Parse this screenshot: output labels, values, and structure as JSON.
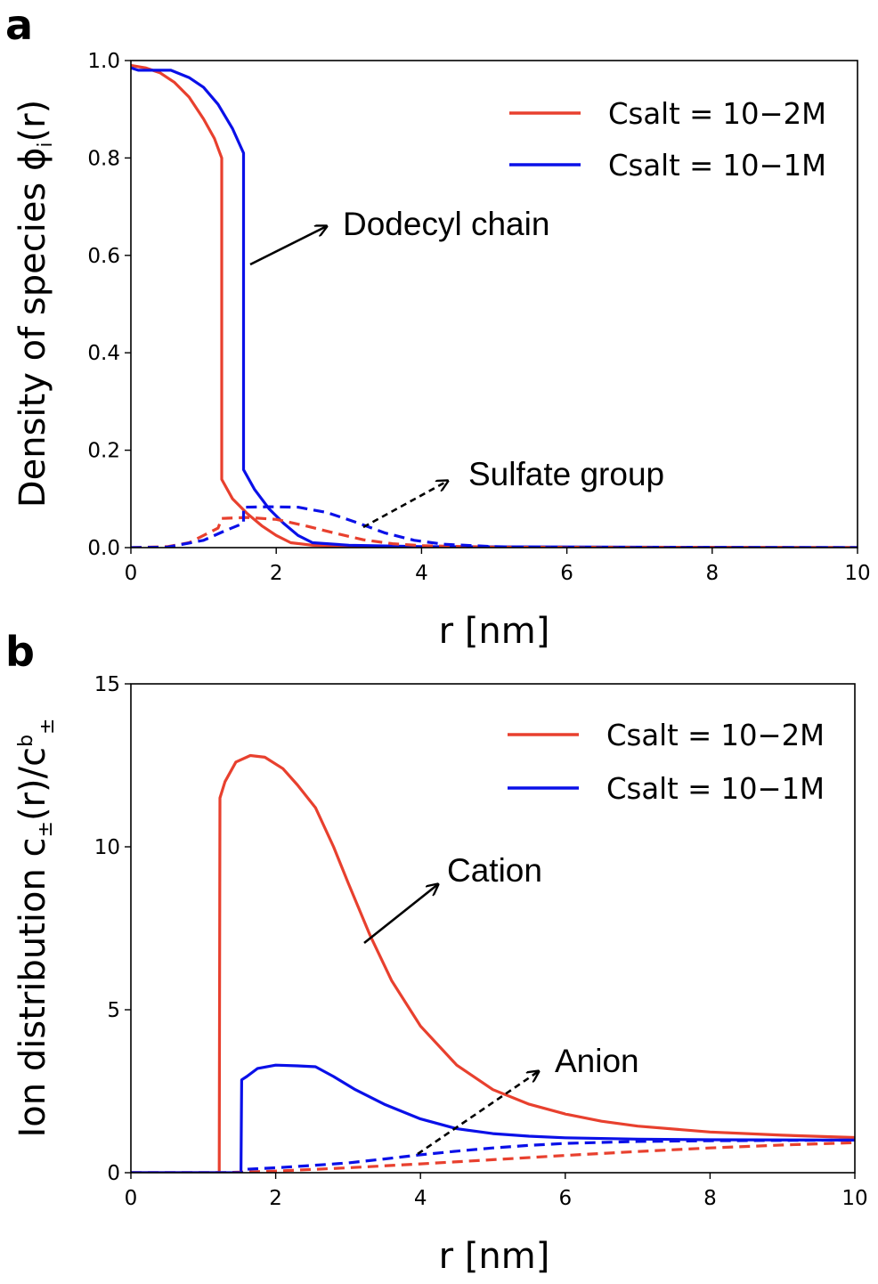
{
  "chart_data": [
    {
      "id": "a",
      "type": "line",
      "panel_label": "a",
      "xlabel": "r [nm]",
      "ylabel": "Density of species ϕi(r)",
      "ylabel_main": "Density of species ϕ",
      "ylabel_sub": "i",
      "ylabel_tail": "(r)",
      "xlim": [
        0,
        10
      ],
      "ylim": [
        0,
        1.0
      ],
      "xticks": [
        0,
        2,
        4,
        6,
        8,
        10
      ],
      "xtick_labels": [
        "0",
        "2",
        "4",
        "6",
        "8",
        "10"
      ],
      "yticks": [
        0,
        0.2,
        0.4,
        0.6,
        0.8,
        1.0
      ],
      "ytick_labels": [
        "0.0",
        "0.2",
        "0.4",
        "0.6",
        "0.8",
        "1.0"
      ],
      "legend": [
        {
          "text": "Csalt = 10−2M",
          "color": "#e8402e"
        },
        {
          "text": "Csalt = 10−1M",
          "color": "#0a10e8"
        }
      ],
      "annotations": [
        {
          "text": "Dodecyl chain",
          "style": "solid"
        },
        {
          "text": "Sulfate group",
          "style": "dashed"
        }
      ],
      "series": [
        {
          "name": "Dodecyl chain, Csalt = 10−2M",
          "color": "#e8402e",
          "dash": false,
          "points": [
            [
              0,
              0.99
            ],
            [
              0.2,
              0.985
            ],
            [
              0.4,
              0.975
            ],
            [
              0.6,
              0.955
            ],
            [
              0.8,
              0.925
            ],
            [
              1.0,
              0.88
            ],
            [
              1.15,
              0.84
            ],
            [
              1.25,
              0.8
            ],
            [
              1.25,
              0.14
            ],
            [
              1.4,
              0.1
            ],
            [
              1.6,
              0.07
            ],
            [
              1.8,
              0.045
            ],
            [
              2.0,
              0.025
            ],
            [
              2.2,
              0.01
            ],
            [
              2.5,
              0.005
            ],
            [
              3,
              0.002
            ],
            [
              4,
              0.001
            ],
            [
              10,
              0.0
            ]
          ]
        },
        {
          "name": "Dodecyl chain, Csalt = 10−1M",
          "color": "#0a10e8",
          "dash": false,
          "points": [
            [
              0,
              0.985
            ],
            [
              0.1,
              0.98
            ],
            [
              0.3,
              0.98
            ],
            [
              0.55,
              0.98
            ],
            [
              0.8,
              0.965
            ],
            [
              1.0,
              0.945
            ],
            [
              1.2,
              0.91
            ],
            [
              1.4,
              0.86
            ],
            [
              1.55,
              0.81
            ],
            [
              1.55,
              0.16
            ],
            [
              1.7,
              0.12
            ],
            [
              1.9,
              0.08
            ],
            [
              2.1,
              0.05
            ],
            [
              2.3,
              0.025
            ],
            [
              2.5,
              0.01
            ],
            [
              3,
              0.005
            ],
            [
              4,
              0.002
            ],
            [
              10,
              0.0
            ]
          ]
        },
        {
          "name": "Sulfate group, Csalt = 10−2M",
          "color": "#e8402e",
          "dash": true,
          "points": [
            [
              0,
              0.0
            ],
            [
              0.5,
              0.002
            ],
            [
              0.8,
              0.01
            ],
            [
              1.0,
              0.025
            ],
            [
              1.2,
              0.04
            ],
            [
              1.25,
              0.06
            ],
            [
              1.6,
              0.062
            ],
            [
              2.0,
              0.058
            ],
            [
              2.4,
              0.045
            ],
            [
              2.8,
              0.03
            ],
            [
              3.2,
              0.016
            ],
            [
              3.6,
              0.008
            ],
            [
              4.0,
              0.004
            ],
            [
              5,
              0.001
            ],
            [
              10,
              0.0
            ]
          ]
        },
        {
          "name": "Sulfate group, Csalt = 10−1M",
          "color": "#0a10e8",
          "dash": true,
          "points": [
            [
              0,
              0.0
            ],
            [
              0.5,
              0.001
            ],
            [
              1.0,
              0.015
            ],
            [
              1.3,
              0.035
            ],
            [
              1.55,
              0.05
            ],
            [
              1.55,
              0.083
            ],
            [
              1.9,
              0.084
            ],
            [
              2.3,
              0.083
            ],
            [
              2.7,
              0.072
            ],
            [
              3.1,
              0.052
            ],
            [
              3.5,
              0.03
            ],
            [
              3.9,
              0.015
            ],
            [
              4.3,
              0.007
            ],
            [
              5,
              0.002
            ],
            [
              6,
              0.0
            ],
            [
              10,
              0.0
            ]
          ]
        }
      ]
    },
    {
      "id": "b",
      "type": "line",
      "panel_label": "b",
      "xlabel": "r [nm]",
      "ylabel": "Ion distribution c±(r)/c±b",
      "ylabel_main": "Ion distribution c",
      "ylabel_sub": "±",
      "ylabel_mid": "(r)/c",
      "ylabel_sup": "b",
      "ylabel_sub2": "±",
      "xlim": [
        0,
        10
      ],
      "ylim": [
        0,
        15
      ],
      "xticks": [
        0,
        2,
        4,
        6,
        8,
        10
      ],
      "xtick_labels": [
        "0",
        "2",
        "4",
        "6",
        "8",
        "10"
      ],
      "yticks": [
        0,
        5,
        10,
        15
      ],
      "ytick_labels": [
        "0",
        "5",
        "10",
        "15"
      ],
      "legend": [
        {
          "text": "Csalt = 10−2M",
          "color": "#e8402e"
        },
        {
          "text": "Csalt = 10−1M",
          "color": "#0a10e8"
        }
      ],
      "annotations": [
        {
          "text": "Cation",
          "style": "solid"
        },
        {
          "text": "Anion",
          "style": "dashed"
        }
      ],
      "series": [
        {
          "name": "Cation, Csalt = 10−2M",
          "color": "#e8402e",
          "dash": false,
          "points": [
            [
              0,
              0.0
            ],
            [
              1.22,
              0.0
            ],
            [
              1.23,
              11.5
            ],
            [
              1.3,
              12.0
            ],
            [
              1.45,
              12.6
            ],
            [
              1.65,
              12.8
            ],
            [
              1.85,
              12.75
            ],
            [
              2.1,
              12.4
            ],
            [
              2.3,
              11.9
            ],
            [
              2.55,
              11.2
            ],
            [
              2.8,
              10.0
            ],
            [
              3.0,
              8.9
            ],
            [
              3.3,
              7.3
            ],
            [
              3.6,
              5.9
            ],
            [
              4.0,
              4.5
            ],
            [
              4.5,
              3.3
            ],
            [
              5.0,
              2.55
            ],
            [
              5.5,
              2.1
            ],
            [
              6.0,
              1.8
            ],
            [
              6.5,
              1.58
            ],
            [
              7.0,
              1.43
            ],
            [
              8.0,
              1.25
            ],
            [
              9.0,
              1.15
            ],
            [
              10,
              1.08
            ]
          ]
        },
        {
          "name": "Cation, Csalt = 10−1M",
          "color": "#0a10e8",
          "dash": false,
          "points": [
            [
              0,
              0.0
            ],
            [
              1.52,
              0.0
            ],
            [
              1.53,
              2.85
            ],
            [
              1.6,
              2.95
            ],
            [
              1.75,
              3.2
            ],
            [
              2.0,
              3.3
            ],
            [
              2.3,
              3.28
            ],
            [
              2.55,
              3.25
            ],
            [
              2.8,
              2.95
            ],
            [
              3.1,
              2.55
            ],
            [
              3.5,
              2.1
            ],
            [
              4.0,
              1.65
            ],
            [
              4.5,
              1.35
            ],
            [
              5.0,
              1.2
            ],
            [
              5.5,
              1.12
            ],
            [
              6.0,
              1.07
            ],
            [
              7,
              1.03
            ],
            [
              8,
              1.01
            ],
            [
              10,
              1.0
            ]
          ]
        },
        {
          "name": "Anion, Csalt = 10−2M",
          "color": "#e8402e",
          "dash": true,
          "points": [
            [
              0,
              0.0
            ],
            [
              1.25,
              0.0
            ],
            [
              2,
              0.05
            ],
            [
              3,
              0.15
            ],
            [
              4,
              0.27
            ],
            [
              5,
              0.4
            ],
            [
              6,
              0.53
            ],
            [
              7,
              0.65
            ],
            [
              8,
              0.76
            ],
            [
              9,
              0.85
            ],
            [
              10,
              0.92
            ]
          ]
        },
        {
          "name": "Anion, Csalt = 10−1M",
          "color": "#0a10e8",
          "dash": true,
          "points": [
            [
              0,
              0.0
            ],
            [
              1.52,
              0.0
            ],
            [
              1.55,
              0.1
            ],
            [
              2,
              0.15
            ],
            [
              2.5,
              0.22
            ],
            [
              3,
              0.3
            ],
            [
              3.5,
              0.42
            ],
            [
              4,
              0.55
            ],
            [
              4.5,
              0.66
            ],
            [
              5,
              0.76
            ],
            [
              5.5,
              0.84
            ],
            [
              6,
              0.9
            ],
            [
              7,
              0.96
            ],
            [
              8,
              0.98
            ],
            [
              10,
              1.0
            ]
          ]
        }
      ]
    }
  ]
}
